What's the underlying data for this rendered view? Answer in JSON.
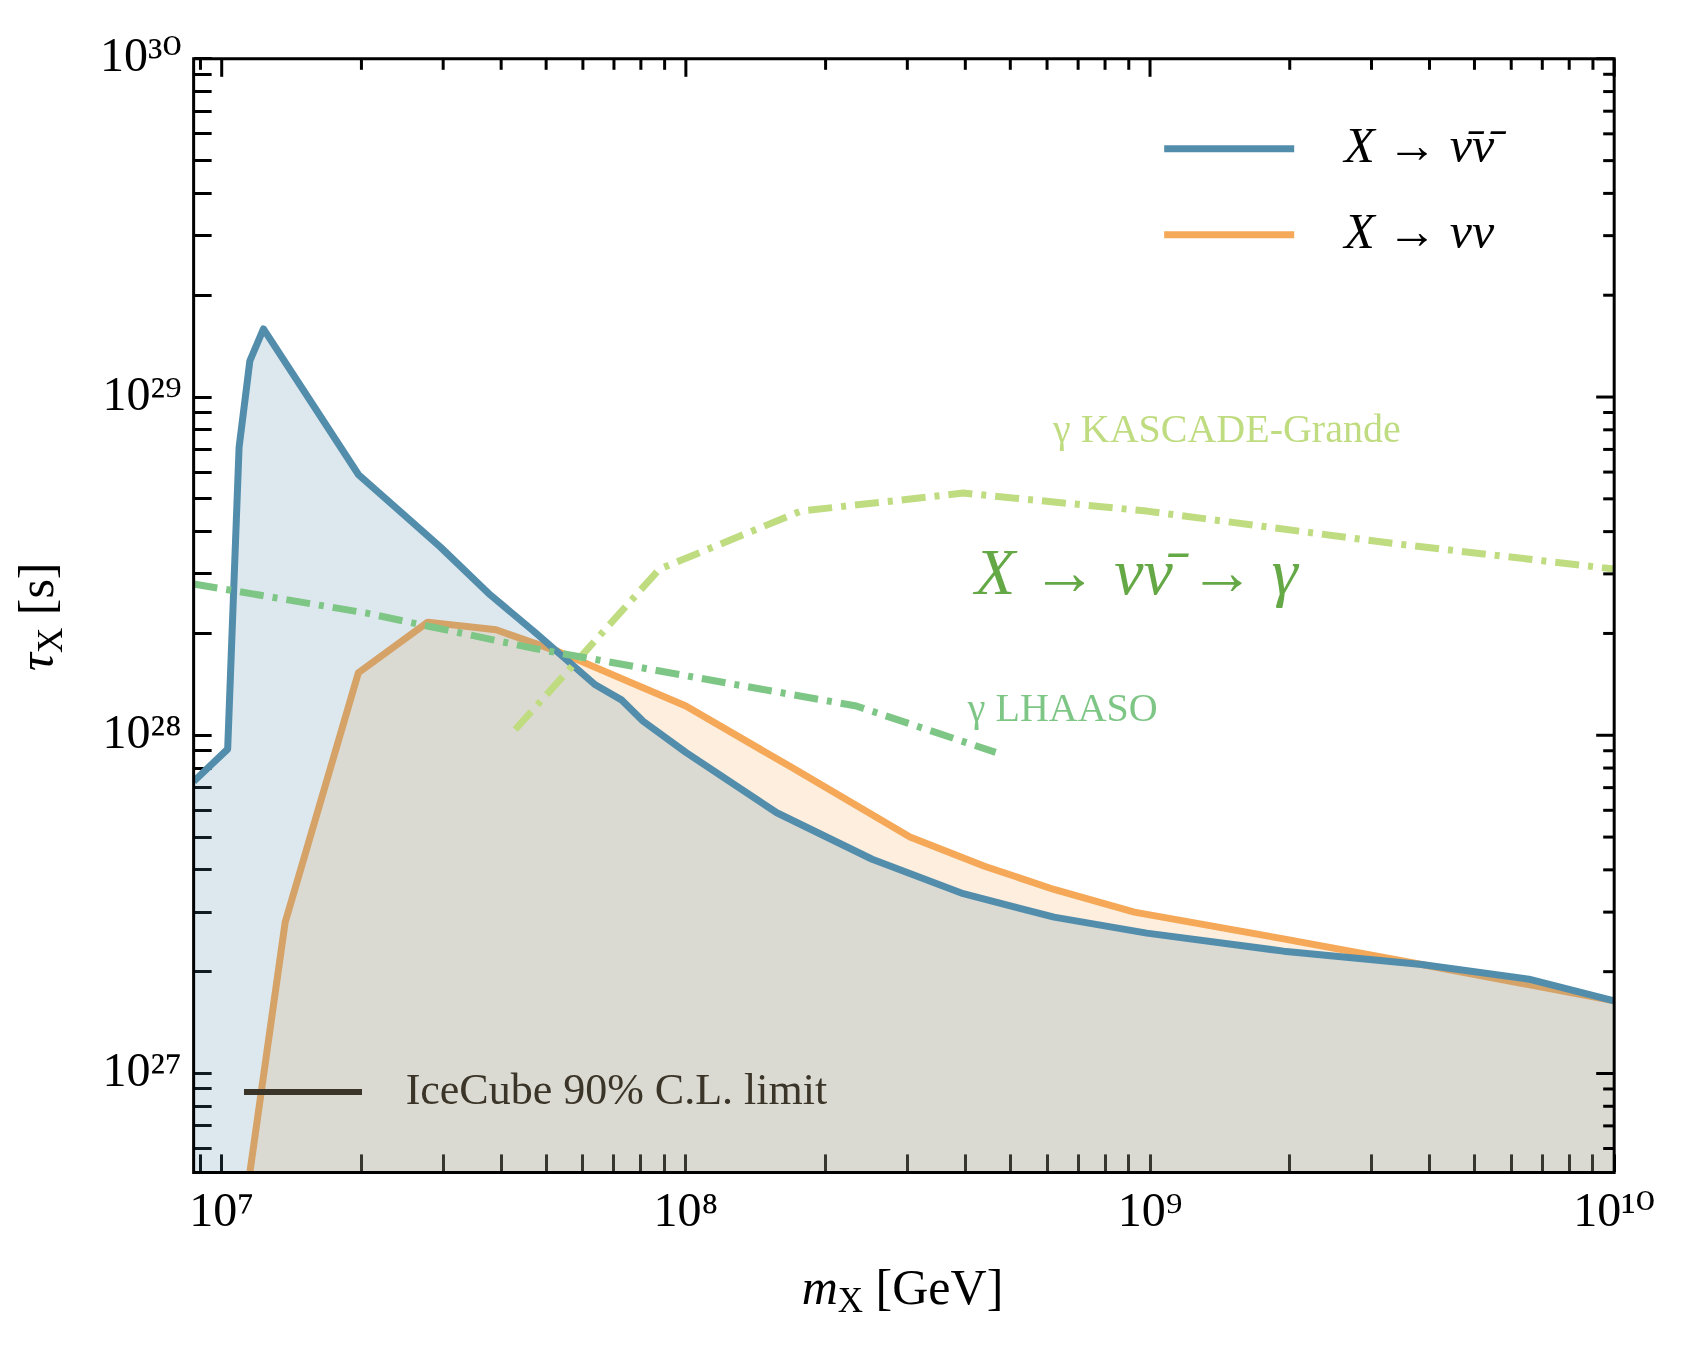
{
  "chart_data": {
    "type": "area",
    "xlabel": "m$_{X}$ [GeV]",
    "ylabel": "τ$_{X}$ [s]",
    "log": "xy",
    "grid": false,
    "legend": "top right",
    "xlim": [
      8700000.0,
      10000000000.0
    ],
    "ylim": [
      5.1e+26,
      1e+30
    ],
    "xticks": [
      {
        "value": 9000000.0,
        "label": null
      },
      {
        "value": 10000000.0,
        "label": "10⁷"
      },
      {
        "value": 20000000.0,
        "label": null
      },
      {
        "value": 30000000.0,
        "label": null
      },
      {
        "value": 40000000.0,
        "label": null
      },
      {
        "value": 50000000.0,
        "label": null
      },
      {
        "value": 60000000.0,
        "label": null
      },
      {
        "value": 70000000.0,
        "label": null
      },
      {
        "value": 80000000.0,
        "label": null
      },
      {
        "value": 90000000.0,
        "label": null
      },
      {
        "value": 100000000.0,
        "label": "10⁸"
      },
      {
        "value": 200000000.0,
        "label": null
      },
      {
        "value": 300000000.0,
        "label": null
      },
      {
        "value": 400000000.0,
        "label": null
      },
      {
        "value": 500000000.0,
        "label": null
      },
      {
        "value": 600000000.0,
        "label": null
      },
      {
        "value": 700000000.0,
        "label": null
      },
      {
        "value": 800000000.0,
        "label": null
      },
      {
        "value": 900000000.0,
        "label": null
      },
      {
        "value": 1000000000.0,
        "label": "10⁹"
      },
      {
        "value": 2000000000.0,
        "label": null
      },
      {
        "value": 3000000000.0,
        "label": null
      },
      {
        "value": 4000000000.0,
        "label": null
      },
      {
        "value": 5000000000.0,
        "label": null
      },
      {
        "value": 6000000000.0,
        "label": null
      },
      {
        "value": 7000000000.0,
        "label": null
      },
      {
        "value": 8000000000.0,
        "label": null
      },
      {
        "value": 9000000000.0,
        "label": null
      },
      {
        "value": 10000000000.0,
        "label": "10¹⁰"
      }
    ],
    "yticks": [
      {
        "value": 6e+26,
        "label": null
      },
      {
        "value": 7e+26,
        "label": null
      },
      {
        "value": 8e+26,
        "label": null
      },
      {
        "value": 9e+26,
        "label": null
      },
      {
        "value": 1e+27,
        "label": "10²⁷"
      },
      {
        "value": 2e+27,
        "label": null
      },
      {
        "value": 3e+27,
        "label": null
      },
      {
        "value": 4e+27,
        "label": null
      },
      {
        "value": 5e+27,
        "label": null
      },
      {
        "value": 6e+27,
        "label": null
      },
      {
        "value": 7e+27,
        "label": null
      },
      {
        "value": 8e+27,
        "label": null
      },
      {
        "value": 9e+27,
        "label": null
      },
      {
        "value": 1e+28,
        "label": "10²⁸"
      },
      {
        "value": 2e+28,
        "label": null
      },
      {
        "value": 3e+28,
        "label": null
      },
      {
        "value": 4e+28,
        "label": null
      },
      {
        "value": 5e+28,
        "label": null
      },
      {
        "value": 6e+28,
        "label": null
      },
      {
        "value": 7e+28,
        "label": null
      },
      {
        "value": 8e+28,
        "label": null
      },
      {
        "value": 9e+28,
        "label": null
      },
      {
        "value": 1e+29,
        "label": "10²⁹"
      },
      {
        "value": 2e+29,
        "label": null
      },
      {
        "value": 3e+29,
        "label": null
      },
      {
        "value": 4e+29,
        "label": null
      },
      {
        "value": 5e+29,
        "label": null
      },
      {
        "value": 6e+29,
        "label": null
      },
      {
        "value": 7e+29,
        "label": null
      },
      {
        "value": 8e+29,
        "label": null
      },
      {
        "value": 9e+29,
        "label": null
      },
      {
        "value": 1e+30,
        "label": "10³⁰"
      }
    ],
    "series": [
      {
        "name": "X → ν̄ν̄",
        "color": "#538dac",
        "x": [
          8700000.0,
          10300000.0,
          10900000.0,
          11500000.0,
          12300000.0,
          19700000.0,
          29600000.0,
          37900000.0,
          47600000.0,
          63800000.0,
          72800000.0,
          80900000.0,
          100000000.0,
          157000000.0,
          252000000.0,
          396000000.0,
          621000000.0,
          984000000.0,
          1940000000.0,
          3850000000.0,
          6550000000.0,
          10000000000.0
        ],
        "values": [
          7.3e+27,
          9.1e+27,
          7.1e+28,
          1.28e+29,
          1.59e+29,
          5.9e+28,
          3.6e+28,
          2.6e+28,
          2e+28,
          1.41e+28,
          1.27e+28,
          1.1e+28,
          8.9e+27,
          5.9e+27,
          4.3e+27,
          3.4e+27,
          2.9e+27,
          2.6e+27,
          2.3e+27,
          2.1e+27,
          1.9e+27,
          1.64e+27
        ]
      },
      {
        "name": "X → νν",
        "color": "#f5a857",
        "x": [
          11500000.0,
          13700000.0,
          19700000.0,
          27800000.0,
          39000000.0,
          53000000.0,
          100000000.0,
          170000000.0,
          304000000.0,
          440000000.0,
          621000000.0,
          925000000.0,
          1940000000.0,
          3850000000.0,
          10000000000.0
        ],
        "values": [
          5.1e+26,
          2.8e+27,
          1.53e+28,
          2.16e+28,
          2.05e+28,
          1.77e+28,
          1.22e+28,
          8e+27,
          5e+27,
          4.1e+27,
          3.5e+27,
          3e+27,
          2.5e+27,
          2.1e+27,
          1.64e+27
        ]
      },
      {
        "type": "line",
        "line_style": "dashed",
        "color": "#7ec685",
        "x": [
          8700000.0,
          20400000.0,
          47600000.0,
          100000000.0,
          233000000.0,
          465000000.0
        ],
        "values": [
          2.8e+28,
          2.3e+28,
          1.8e+28,
          1.5e+28,
          1.22e+28,
          8.9e+27
        ]
      },
      {
        "type": "line",
        "line_style": "dashed",
        "color": "#bfdc80",
        "x": [
          42900000.0,
          87700000.0,
          177000000.0,
          396000000.0,
          984000000.0,
          3290000000.0,
          10000000000.0
        ],
        "values": [
          1.04e+28,
          3.1e+28,
          4.6e+28,
          5.2e+28,
          4.6e+28,
          3.7e+28,
          3.1e+28
        ]
      }
    ],
    "annotations": [
      "γ KASCADE-Grande",
      "γ LHAASO",
      "X → νν̄ → γ",
      "IceCube 90% C.L. limit"
    ]
  }
}
